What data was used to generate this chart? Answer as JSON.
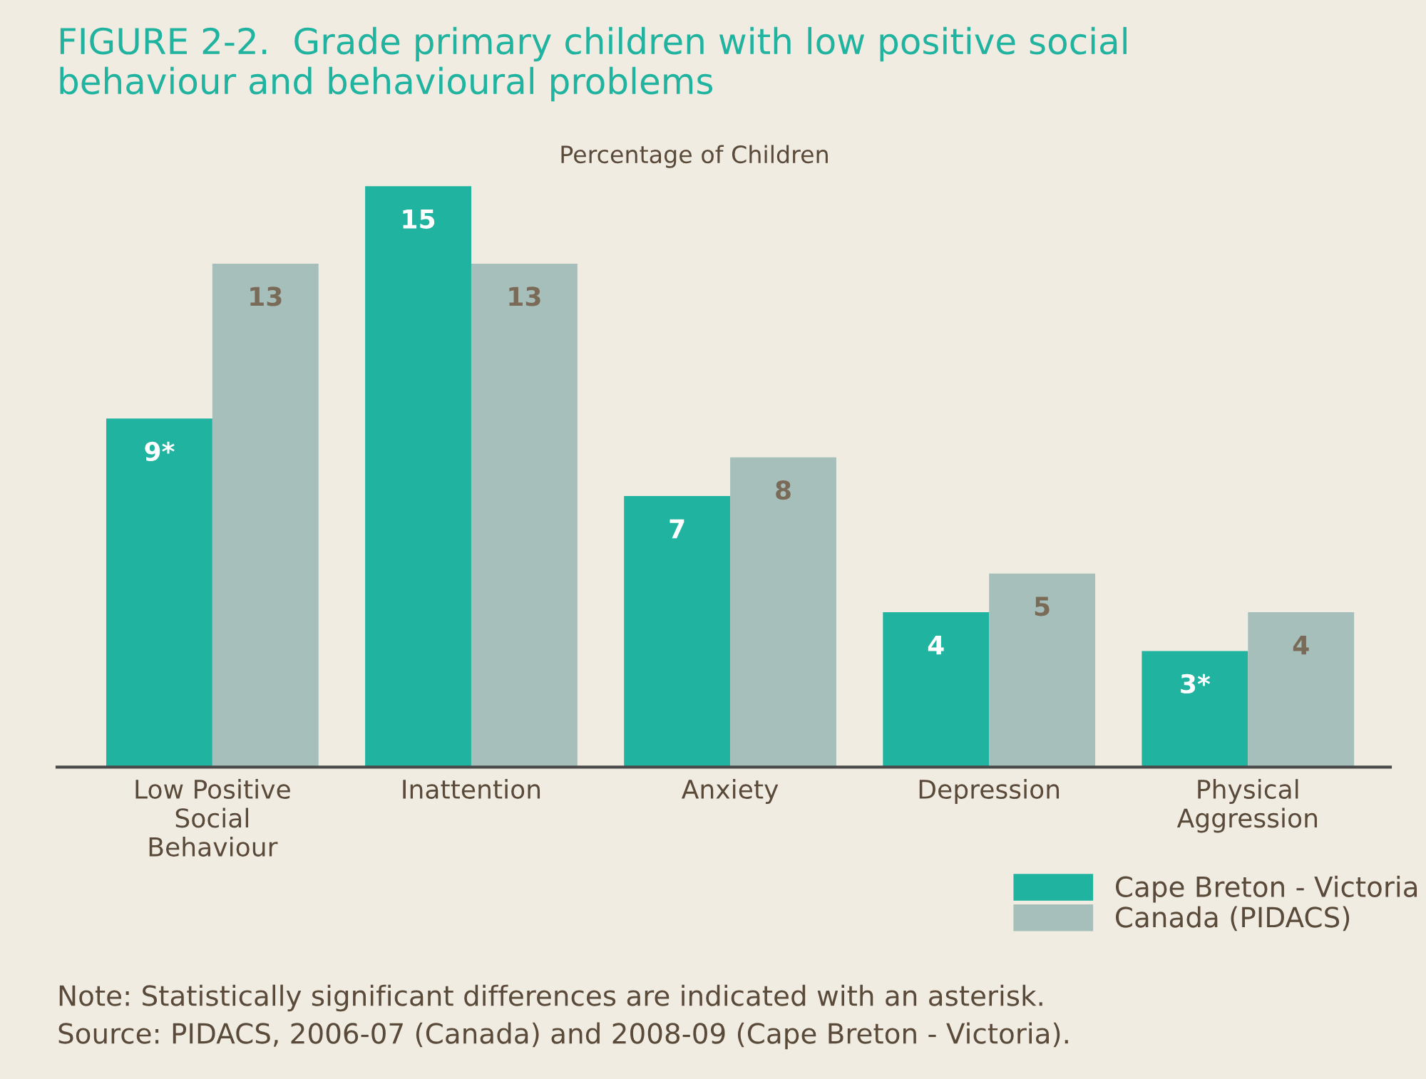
{
  "chart_data": {
    "type": "bar",
    "title": "FIGURE 2-2.  Grade primary children with low positive social\nbehaviour and behavioural problems",
    "ylabel": "Percentage of Children",
    "categories": [
      "Low Positive\nSocial\nBehaviour",
      "Inattention",
      "Anxiety",
      "Depression",
      "Physical\nAggression"
    ],
    "series": [
      {
        "name": "Cape Breton - Victoria",
        "color": "#20b3a0",
        "values": [
          9,
          15,
          7,
          4,
          3
        ],
        "value_labels": [
          "9*",
          "15",
          "7",
          "4",
          "3*"
        ]
      },
      {
        "name": "Canada (PIDACS)",
        "color": "#a7bfbb",
        "values": [
          13,
          13,
          8,
          5,
          4
        ],
        "value_labels": [
          "13",
          "13",
          "8",
          "5",
          "4"
        ]
      }
    ],
    "legend": "bottom right",
    "annotations": [
      "Note: Statistically significant differences are indicated with an asterisk.",
      "Source: PIDACS, 2006-07 (Canada) and 2008-09 (Cape Breton - Victoria)."
    ]
  }
}
